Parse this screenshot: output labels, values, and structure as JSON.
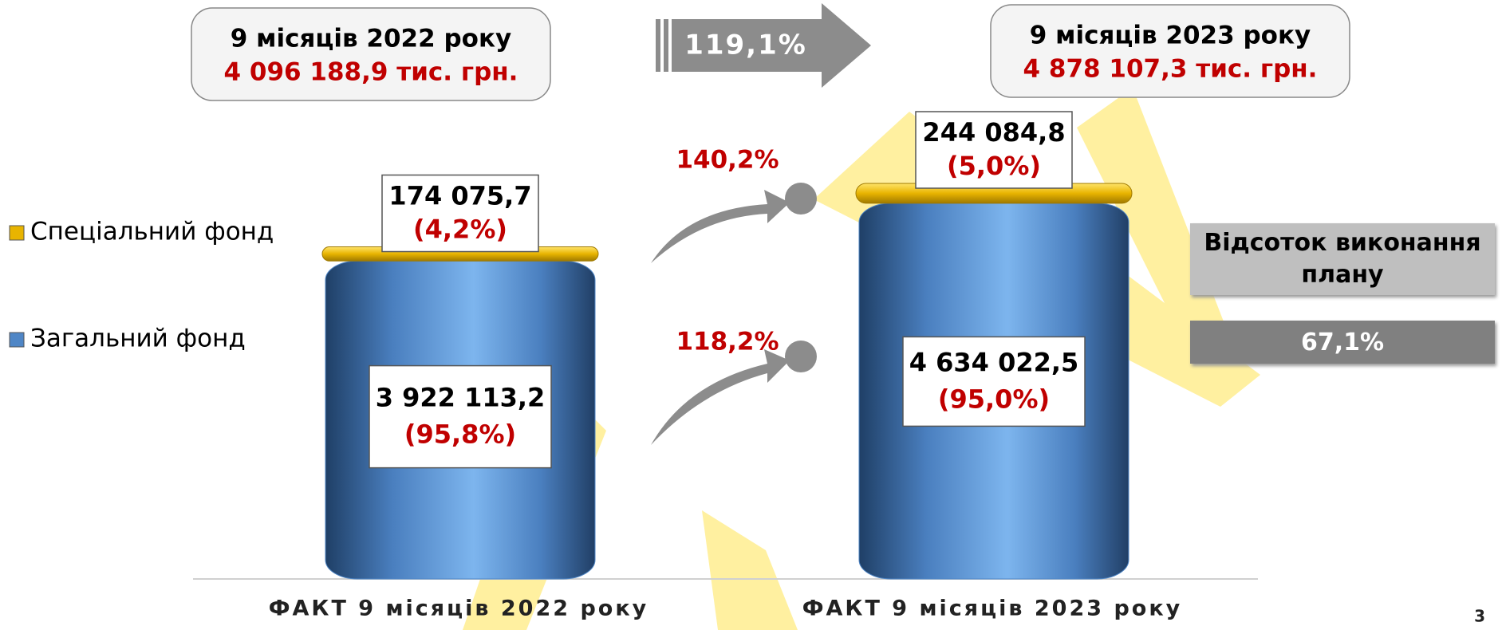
{
  "chart_data": {
    "type": "bar",
    "stacked": true,
    "categories": [
      "ФАКТ 9 місяців 2022 року",
      "ФАКТ 9 місяців 2023 року"
    ],
    "series": [
      {
        "name": "Загальний фонд",
        "color": "#4f86c6",
        "values": [
          3922113.2,
          4634022.5
        ],
        "value_labels": [
          "3 922 113,2",
          "4 634 022,5"
        ],
        "shares": [
          95.8,
          95.0
        ],
        "share_labels": [
          "(95,8%)",
          "(95,0%)"
        ]
      },
      {
        "name": "Спеціальний фонд",
        "color": "#e8b400",
        "values": [
          174075.7,
          244084.8
        ],
        "value_labels": [
          "174 075,7",
          "244 084,8"
        ],
        "shares": [
          4.2,
          5.0
        ],
        "share_labels": [
          "(4,2%)",
          "(5,0%)"
        ]
      }
    ],
    "totals": {
      "periods": [
        "9 місяців  2022 року",
        "9 місяців  2023 року"
      ],
      "values": [
        4096188.9,
        4878107.3
      ],
      "value_labels": [
        "4 096 188,9 тис. грн.",
        "4 878 107,3 тис. грн."
      ]
    },
    "growth": {
      "total": 119.1,
      "total_label": "119,1%",
      "series": [
        118.2,
        140.2
      ],
      "series_labels": [
        "118,2%",
        "140,2%"
      ]
    },
    "plan": {
      "title": "Відсоток виконання плану",
      "value": 67.1,
      "label": "67,1%"
    },
    "page_number": "3"
  }
}
